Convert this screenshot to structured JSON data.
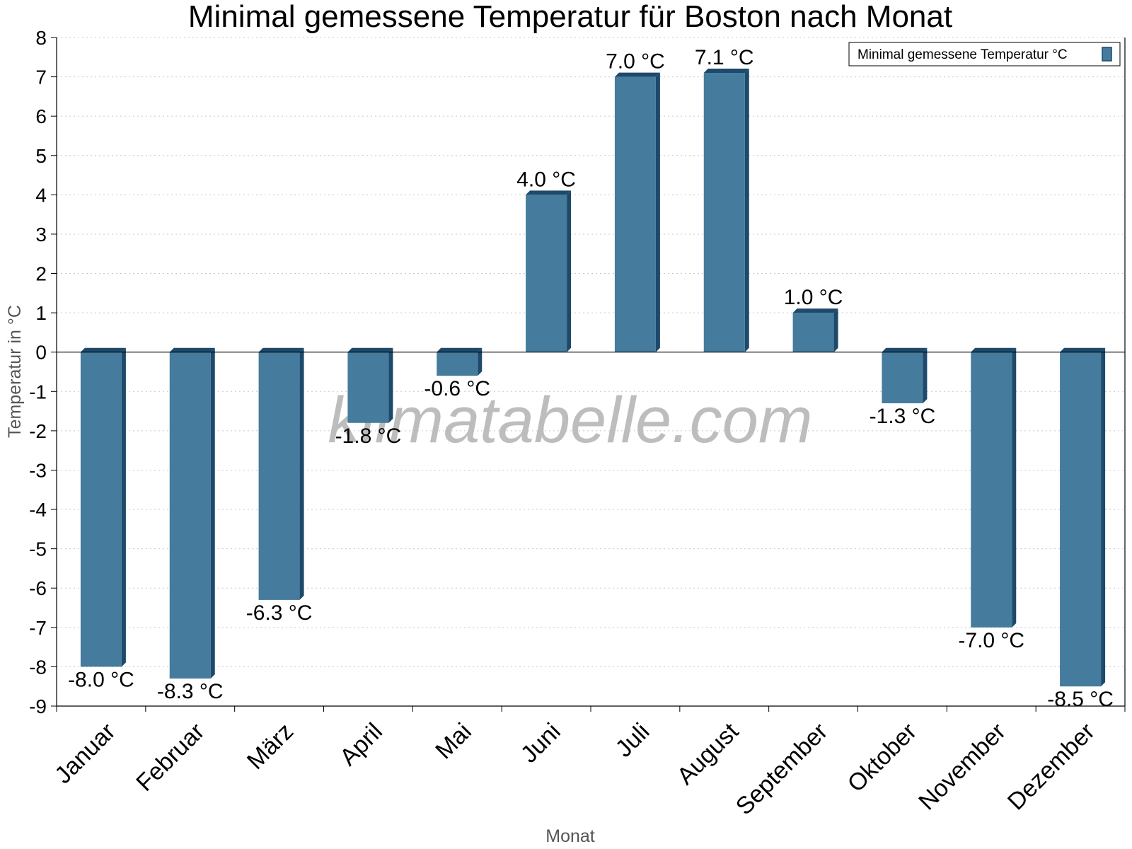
{
  "chart_data": {
    "type": "bar",
    "title": "Minimal gemessene Temperatur für Boston nach Monat",
    "xlabel": "Monat",
    "ylabel": "Temperatur in °C",
    "categories": [
      "Januar",
      "Februar",
      "März",
      "April",
      "Mai",
      "Juni",
      "Juli",
      "August",
      "September",
      "Oktober",
      "November",
      "Dezember"
    ],
    "series": [
      {
        "name": "Minimal gemessene Temperatur °C",
        "values": [
          -8.0,
          -8.3,
          -6.3,
          -1.8,
          -0.6,
          4.0,
          7.0,
          7.1,
          1.0,
          -1.3,
          -7.0,
          -8.5
        ],
        "labels": [
          "-8.0 °C",
          "-8.3 °C",
          "-6.3 °C",
          "-1.8 °C",
          "-0.6 °C",
          "4.0 °C",
          "7.0 °C",
          "7.1 °C",
          "1.0 °C",
          "-1.3 °C",
          "-7.0 °C",
          "-8.5 °C"
        ],
        "color": "#457b9d",
        "side_color": "#1d4a6b"
      }
    ],
    "ylim": [
      -9,
      8
    ],
    "yticks": [
      "8",
      "7",
      "6",
      "5",
      "4",
      "3",
      "2",
      "1",
      "0",
      "-1",
      "-2",
      "-3",
      "-4",
      "-5",
      "-6",
      "-7",
      "-8",
      "-9"
    ],
    "grid": true,
    "legend": "top-right"
  },
  "watermark": "klimatabelle.com"
}
